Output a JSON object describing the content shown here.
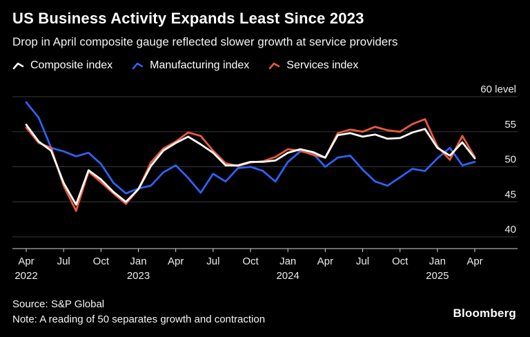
{
  "header": {
    "title": "US Business Activity Expands Least Since 2023",
    "subtitle": "Drop in April composite gauge reflected slower growth at service providers"
  },
  "legend": [
    {
      "label": "Composite index",
      "color": "#ffffff"
    },
    {
      "label": "Manufacturing index",
      "color": "#2e62f6"
    },
    {
      "label": "Services index",
      "color": "#ea5b3c"
    }
  ],
  "footer": {
    "source": "Source: S&P Global",
    "note": "Note: A reading of 50 separates growth and contraction",
    "brand": "Bloomberg"
  },
  "chart_data": {
    "type": "line",
    "title": "US Business Activity Expands Least Since 2023",
    "xlabel": "",
    "ylabel": "level",
    "ylim": [
      40,
      60
    ],
    "grid": true,
    "legend_position": "top",
    "x": [
      "Apr 2022",
      "May 2022",
      "Jun 2022",
      "Jul 2022",
      "Aug 2022",
      "Sep 2022",
      "Oct 2022",
      "Nov 2022",
      "Dec 2022",
      "Jan 2023",
      "Feb 2023",
      "Mar 2023",
      "Apr 2023",
      "May 2023",
      "Jun 2023",
      "Jul 2023",
      "Aug 2023",
      "Sep 2023",
      "Oct 2023",
      "Nov 2023",
      "Dec 2023",
      "Jan 2024",
      "Feb 2024",
      "Mar 2024",
      "Apr 2024",
      "May 2024",
      "Jun 2024",
      "Jul 2024",
      "Aug 2024",
      "Sep 2024",
      "Oct 2024",
      "Nov 2024",
      "Dec 2024",
      "Jan 2025",
      "Feb 2025",
      "Mar 2025",
      "Apr 2025"
    ],
    "y_ticks": [
      {
        "value": 40,
        "label": "40"
      },
      {
        "value": 45,
        "label": "45"
      },
      {
        "value": 50,
        "label": "50"
      },
      {
        "value": 55,
        "label": "55"
      },
      {
        "value": 60,
        "label": "60 level"
      }
    ],
    "x_ticks": [
      {
        "index": 0,
        "label": "Apr",
        "year": "2022"
      },
      {
        "index": 3,
        "label": "Jul"
      },
      {
        "index": 6,
        "label": "Oct"
      },
      {
        "index": 9,
        "label": "Jan",
        "year": "2023"
      },
      {
        "index": 12,
        "label": "Apr"
      },
      {
        "index": 15,
        "label": "Jul"
      },
      {
        "index": 18,
        "label": "Oct"
      },
      {
        "index": 21,
        "label": "Jan",
        "year": "2024"
      },
      {
        "index": 24,
        "label": "Apr"
      },
      {
        "index": 27,
        "label": "Jul"
      },
      {
        "index": 30,
        "label": "Oct"
      },
      {
        "index": 33,
        "label": "Jan",
        "year": "2025"
      },
      {
        "index": 36,
        "label": "Apr"
      }
    ],
    "series": [
      {
        "name": "Manufacturing index",
        "slug": "manufacturing-index-line",
        "color": "#2e62f6",
        "values": [
          59.2,
          57.0,
          52.7,
          52.2,
          51.5,
          52.0,
          50.4,
          47.7,
          46.2,
          46.9,
          47.3,
          49.2,
          50.2,
          48.4,
          46.3,
          49.0,
          47.9,
          49.8,
          50.0,
          49.4,
          47.9,
          50.7,
          52.2,
          51.9,
          50.0,
          51.3,
          51.6,
          49.6,
          47.9,
          47.3,
          48.5,
          49.7,
          49.4,
          51.2,
          52.7,
          50.2,
          50.7
        ]
      },
      {
        "name": "Services index",
        "slug": "services-index-line",
        "color": "#ea5b3c",
        "values": [
          55.6,
          53.4,
          52.7,
          47.3,
          43.7,
          49.3,
          47.8,
          46.2,
          44.7,
          46.8,
          50.6,
          52.6,
          53.6,
          54.9,
          54.4,
          52.3,
          50.5,
          50.1,
          50.6,
          50.8,
          51.4,
          52.5,
          52.3,
          51.7,
          51.3,
          54.8,
          55.3,
          55.0,
          55.7,
          55.2,
          55.0,
          56.1,
          56.8,
          52.9,
          51.0,
          54.4,
          51.4
        ]
      },
      {
        "name": "Composite index",
        "slug": "composite-index-line",
        "color": "#ffffff",
        "values": [
          56.0,
          53.6,
          52.3,
          47.7,
          44.6,
          49.5,
          48.2,
          46.4,
          45.0,
          46.8,
          50.1,
          52.3,
          53.4,
          54.3,
          53.2,
          52.0,
          50.2,
          50.2,
          50.7,
          50.7,
          50.9,
          52.0,
          52.5,
          52.1,
          51.3,
          54.5,
          54.8,
          54.3,
          54.6,
          54.0,
          54.1,
          54.9,
          55.4,
          52.7,
          51.6,
          53.5,
          51.2
        ]
      }
    ]
  }
}
